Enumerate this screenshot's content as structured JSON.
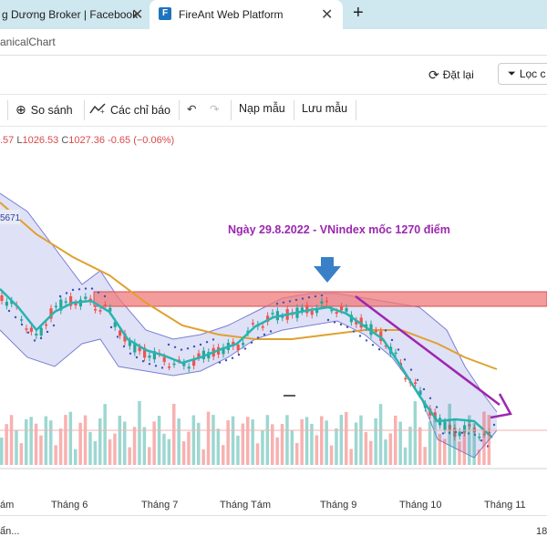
{
  "browser": {
    "tabs": [
      {
        "label": "g Dương Broker | Facebook",
        "favicon": "facebook"
      },
      {
        "label": "FireAnt Web Platform",
        "favicon": "F"
      }
    ],
    "new_tab_symbol": "+",
    "close_symbol": "✕"
  },
  "page": {
    "title": "anicalChart"
  },
  "toolbar": {
    "reset_label": "Đặt lại",
    "filter_label": "Lọc c",
    "compare_label": "So sánh",
    "indicators_label": "Các chỉ báo",
    "load_template_label": "Nạp mẫu",
    "save_template_label": "Lưu mẫu"
  },
  "ohlc": {
    "open_tail": ".57",
    "low_label": "L",
    "low": "1026.53",
    "close_label": "C",
    "close": "1027.36",
    "change": "-0.65 (−0.06%)"
  },
  "chart_data": {
    "type": "candlestick",
    "annotation": "Ngày 29.8.2022 - VNindex mốc 1270 điểm",
    "left_axis_tag": "5671",
    "x_ticks": [
      "ám",
      "Tháng 6",
      "Tháng 7",
      "Tháng Tám",
      "Tháng 9",
      "Tháng 10",
      "Tháng 11"
    ],
    "colors": {
      "up": "#26a69a",
      "down": "#ef5350",
      "bollinger_fill": "#c5c8ee",
      "bollinger_line": "#7b7fd4",
      "resistance_zone": "#f07a7a",
      "ma_long": "#e0a030",
      "ma_short": "#26b5b0",
      "dots": "#3f51b5",
      "annotation": "#9c27b0",
      "arrow": "#3a80c8",
      "trend": "#9c27b0"
    }
  },
  "status": {
    "left": "ẩn...",
    "right": "18"
  }
}
